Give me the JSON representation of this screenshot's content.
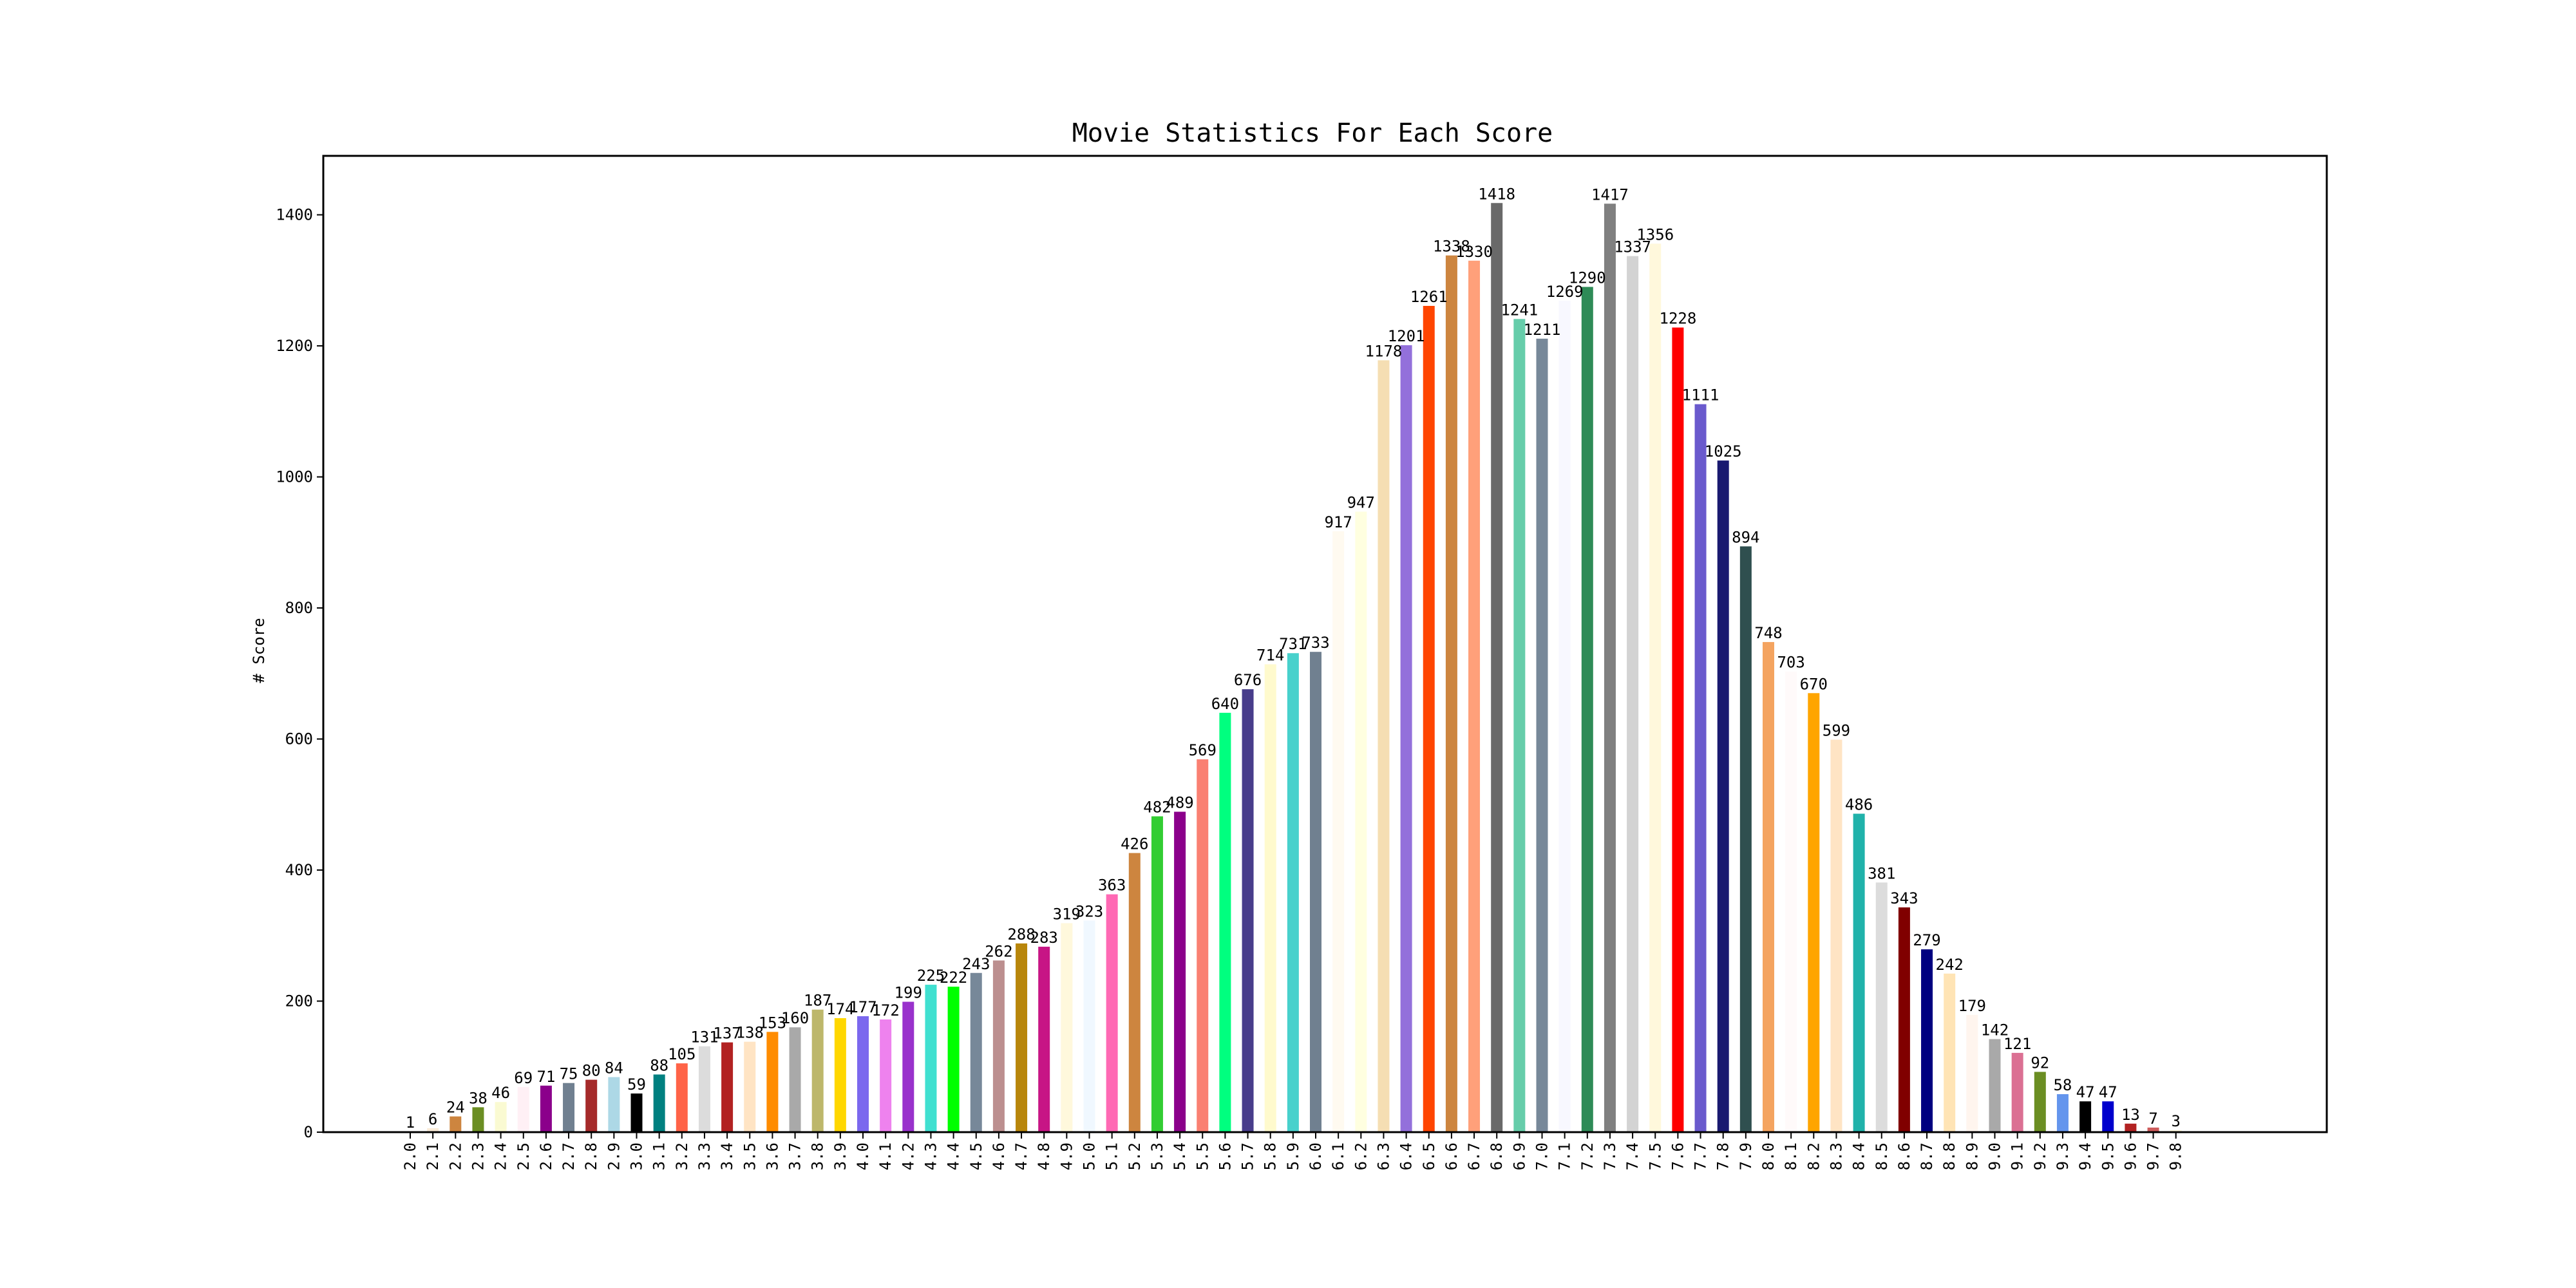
{
  "chart_data": {
    "type": "bar",
    "title": "Movie Statistics For Each Score",
    "xlabel": "",
    "ylabel": "# Score",
    "ylim": [
      0,
      1490
    ],
    "yticks": [
      "0",
      "200",
      "400",
      "600",
      "800",
      "1000",
      "1200",
      "1400"
    ],
    "grid": false,
    "categories": [
      "2.0",
      "2.1",
      "2.2",
      "2.3",
      "2.4",
      "2.5",
      "2.6",
      "2.7",
      "2.8",
      "2.9",
      "3.0",
      "3.1",
      "3.2",
      "3.3",
      "3.4",
      "3.5",
      "3.6",
      "3.7",
      "3.8",
      "3.9",
      "4.0",
      "4.1",
      "4.2",
      "4.3",
      "4.4",
      "4.5",
      "4.6",
      "4.7",
      "4.8",
      "4.9",
      "5.0",
      "5.1",
      "5.2",
      "5.3",
      "5.4",
      "5.5",
      "5.6",
      "5.7",
      "5.8",
      "5.9",
      "6.0",
      "6.1",
      "6.2",
      "6.3",
      "6.4",
      "6.5",
      "6.6",
      "6.7",
      "6.8",
      "6.9",
      "7.0",
      "7.1",
      "7.2",
      "7.3",
      "7.4",
      "7.5",
      "7.6",
      "7.7",
      "7.8",
      "7.9",
      "8.0",
      "8.1",
      "8.2",
      "8.3",
      "8.4",
      "8.5",
      "8.6",
      "8.7",
      "8.8",
      "8.9",
      "9.0",
      "9.1",
      "9.2",
      "9.3",
      "9.4",
      "9.5",
      "9.6",
      "9.7",
      "9.8"
    ],
    "values": [
      1,
      6,
      24,
      38,
      46,
      69,
      71,
      75,
      80,
      84,
      59,
      88,
      105,
      131,
      137,
      138,
      153,
      160,
      187,
      174,
      177,
      172,
      199,
      225,
      222,
      243,
      262,
      288,
      283,
      319,
      323,
      363,
      426,
      482,
      489,
      569,
      640,
      676,
      714,
      731,
      733,
      917,
      947,
      1178,
      1201,
      1261,
      1338,
      1330,
      1418,
      1241,
      1211,
      1269,
      1290,
      1417,
      1337,
      1356,
      1228,
      1111,
      1025,
      894,
      748,
      703,
      670,
      599,
      486,
      381,
      343,
      279,
      242,
      179,
      142,
      121,
      92,
      58,
      47,
      47,
      13,
      7,
      3
    ],
    "labels": [
      "1",
      "6",
      "24",
      "38",
      "46",
      "69",
      "71",
      "75",
      "80",
      "84",
      "59",
      "88",
      "105",
      "131",
      "137",
      "138",
      "153",
      "160",
      "187",
      "174",
      "177",
      "172",
      "199",
      "225",
      "222",
      "243",
      "262",
      "288",
      "283",
      "319",
      "323",
      "363",
      "426",
      "482",
      "489",
      "569",
      "640",
      "676",
      "714",
      "731",
      "733",
      "917",
      "947",
      "1178",
      "1201",
      "1261",
      "1338",
      "1330",
      "1418",
      "1241",
      "1211",
      "1269",
      "1290",
      "1417",
      "1337",
      "1356",
      "1228",
      "1111",
      "1025",
      "894",
      "748",
      "703",
      "670",
      "599",
      "486",
      "381",
      "343",
      "279",
      "242",
      "179",
      "142",
      "121",
      "92",
      "58",
      "47",
      "47",
      "13",
      "7",
      "3"
    ],
    "colors": [
      "#5F9EA0",
      "#FAEBD7",
      "#CD853F",
      "#6B8E23",
      "#FAFAD2",
      "#FFF0F5",
      "#8B008B",
      "#708090",
      "#A52A2A",
      "#ADD8E6",
      "#000000",
      "#008080",
      "#FF6347",
      "#DCDCDC",
      "#B22222",
      "#FFE4C4",
      "#FF8C00",
      "#A9A9A9",
      "#BDB76B",
      "#FFD700",
      "#7B68EE",
      "#EE82EE",
      "#9932CC",
      "#40E0D0",
      "#00FF00",
      "#778899",
      "#BC8F8F",
      "#B8860B",
      "#C71585",
      "#FFF8DC",
      "#F0F8FF",
      "#FF69B4",
      "#CD853F",
      "#32CD32",
      "#8B008B",
      "#FA8072",
      "#00FF7F",
      "#483D8B",
      "#FFFACD",
      "#48D1CC",
      "#708090",
      "#FFFAF0",
      "#FFFFE0",
      "#F5DEB3",
      "#9370DB",
      "#FF4500",
      "#CD853F",
      "#FFA07A",
      "#696969",
      "#66CDAA",
      "#778899",
      "#F8F8FF",
      "#2E8B57",
      "#808080",
      "#D3D3D3",
      "#FFF8DC",
      "#FF0000",
      "#6A5ACD",
      "#191970",
      "#2F4F4F",
      "#F4A460",
      "#FFFAFA",
      "#FFA500",
      "#FFE4C4",
      "#20B2AA",
      "#DCDCDC",
      "#800000",
      "#000080",
      "#FFE4B5",
      "#FFF5EE",
      "#A9A9A9",
      "#DB7093",
      "#6B8E23",
      "#6495ED",
      "#000000",
      "#0000CD",
      "#B22222",
      "#CD5C5C",
      "#FFF8DC"
    ]
  }
}
